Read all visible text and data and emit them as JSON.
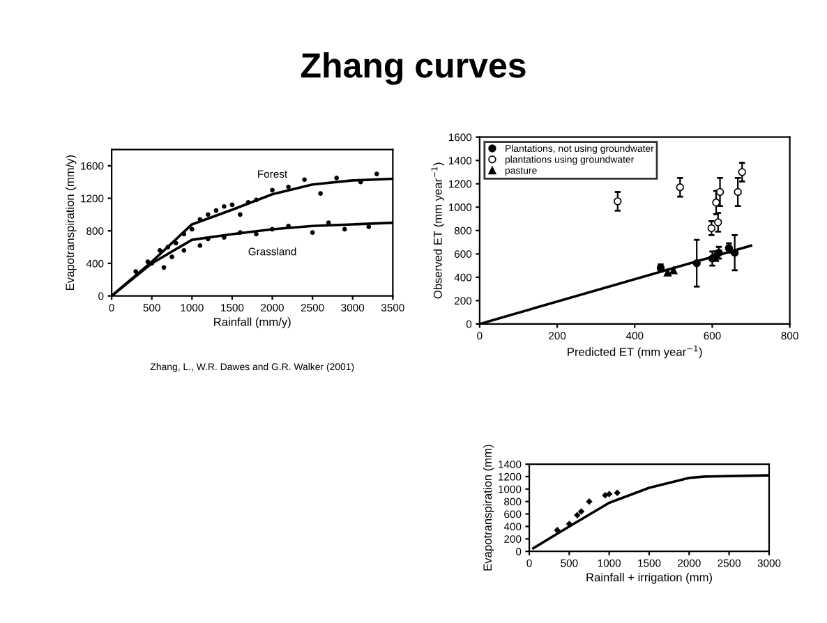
{
  "chart_data": [
    {
      "type": "line",
      "title": "Zhang curves",
      "xlabel": "Rainfall (mm/y)",
      "ylabel": "Evapotranspiration (mm/y)",
      "xlim": [
        0,
        3500
      ],
      "xticks": [
        0,
        500,
        1000,
        1500,
        2000,
        2500,
        3000,
        3500
      ],
      "ylim": [
        0,
        1800
      ],
      "yticks": [
        0,
        400,
        800,
        1200,
        1600
      ],
      "legend": false,
      "annotations": [
        "Zhang, L., W.R. Dawes and G.R. Walker (2001)"
      ],
      "series": [
        {
          "name": "Forest",
          "color": "#000000",
          "x": [
            0,
            500,
            1000,
            1500,
            2000,
            2500,
            3000,
            3500
          ],
          "values": [
            0,
            420,
            880,
            1060,
            1250,
            1370,
            1420,
            1440
          ]
        },
        {
          "name": "Grassland",
          "color": "#000000",
          "x": [
            0,
            500,
            1000,
            1500,
            2000,
            2500,
            3000,
            3500
          ],
          "values": [
            0,
            400,
            690,
            760,
            820,
            860,
            880,
            900
          ]
        },
        {
          "type": "scatter",
          "marker": "circle",
          "color": "#000000",
          "x": [
            300,
            450,
            600,
            700,
            800,
            900,
            1000,
            1100,
            1200,
            1300,
            1400,
            1500,
            1600,
            1700,
            1800,
            2000,
            2200,
            2400,
            2600,
            2800,
            3100,
            3300
          ],
          "values": [
            300,
            420,
            560,
            600,
            650,
            760,
            820,
            940,
            1000,
            1050,
            1100,
            1120,
            1000,
            1150,
            1180,
            1300,
            1340,
            1430,
            1260,
            1450,
            1400,
            1500
          ]
        },
        {
          "type": "scatter",
          "marker": "circle",
          "color": "#000000",
          "x": [
            500,
            650,
            750,
            900,
            1100,
            1200,
            1400,
            1600,
            1800,
            2000,
            2200,
            2500,
            2700,
            2900,
            3200
          ],
          "values": [
            400,
            350,
            480,
            560,
            620,
            700,
            720,
            780,
            760,
            820,
            860,
            780,
            900,
            820,
            850
          ]
        }
      ]
    },
    {
      "type": "scatter",
      "xlabel": "Predicted ET (mm year$^{−1}$)",
      "ylabel": "Observed ET (mm year$^{−1}$)",
      "xlim": [
        0,
        800
      ],
      "xticks": [
        0,
        200,
        400,
        600,
        800
      ],
      "ylim": [
        0,
        1600
      ],
      "yticks": [
        0,
        200,
        400,
        600,
        800,
        1000,
        1200,
        1400,
        1600
      ],
      "legend": "top left",
      "series": [
        {
          "type": "line",
          "color": "#000000",
          "x": [
            0,
            700
          ],
          "values": [
            0,
            670
          ]
        },
        {
          "name": "Plantations, not using groundwater",
          "marker": "circle",
          "color": "#000000",
          "x": [
            467,
            560,
            600,
            610,
            617,
            643,
            658
          ],
          "values": [
            480,
            520,
            560,
            580,
            610,
            650,
            610
          ],
          "errors": [
            30,
            200,
            60,
            40,
            50,
            40,
            150
          ]
        },
        {
          "name": "plantations using groundwater",
          "marker": "circle",
          "color": "#ffffff",
          "x": [
            356,
            517,
            598,
            610,
            615,
            620,
            666,
            677
          ],
          "values": [
            1050,
            1170,
            820,
            1040,
            870,
            1130,
            1130,
            1300
          ],
          "errors": [
            80,
            80,
            60,
            100,
            80,
            120,
            120,
            80
          ]
        },
        {
          "name": "pasture",
          "marker": "triangle",
          "color": "#000000",
          "x": [
            485,
            500
          ],
          "values": [
            440,
            460
          ]
        }
      ]
    },
    {
      "type": "line",
      "xlabel": "Rainfall + irrigation (mm)",
      "ylabel": "Evapotranspiration (mm)",
      "xlim": [
        0,
        3000
      ],
      "xticks": [
        0,
        500,
        1000,
        1500,
        2000,
        2500,
        3000
      ],
      "ylim": [
        0,
        1400
      ],
      "yticks": [
        0,
        200,
        400,
        600,
        800,
        1000,
        1200,
        1400
      ],
      "legend": false,
      "series": [
        {
          "color": "#000000",
          "x": [
            50,
            500,
            1000,
            1500,
            2000,
            2200,
            3000
          ],
          "values": [
            50,
            400,
            780,
            1020,
            1180,
            1200,
            1220
          ]
        },
        {
          "type": "scatter",
          "marker": "diamond",
          "color": "#000000",
          "x": [
            350,
            500,
            600,
            650,
            750,
            950,
            1000,
            1100
          ],
          "values": [
            340,
            440,
            580,
            640,
            800,
            900,
            920,
            940
          ]
        }
      ]
    }
  ]
}
